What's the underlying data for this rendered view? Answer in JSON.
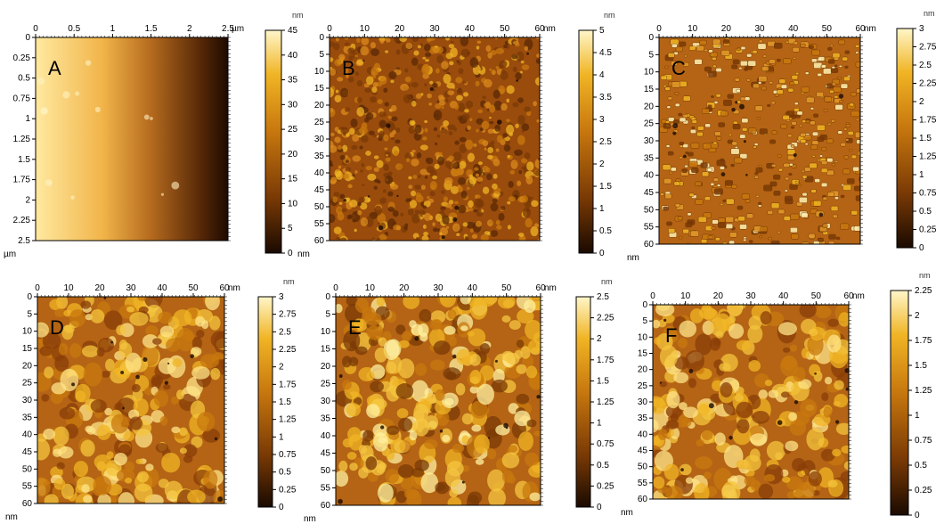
{
  "panels": [
    {
      "id": "A",
      "letter": "A",
      "x_ticks": [
        "0",
        "0.5",
        "1",
        "1.5",
        "2",
        "2.5"
      ],
      "x_unit": "µm",
      "y_ticks": [
        "0",
        "0.25",
        "0.5",
        "0.75",
        "1",
        "1.25",
        "1.5",
        "1.75",
        "2",
        "2.25",
        "2.5"
      ],
      "y_unit": "µm",
      "scale_unit": "nm",
      "scale_ticks": [
        "45",
        "40",
        "35",
        "30",
        "25",
        "20",
        "15",
        "10",
        "5",
        "0"
      ],
      "texture": "gradient"
    },
    {
      "id": "B",
      "letter": "B",
      "x_ticks": [
        "0",
        "10",
        "20",
        "30",
        "40",
        "50",
        "60"
      ],
      "x_unit": "nm",
      "y_ticks": [
        "0",
        "5",
        "10",
        "15",
        "20",
        "25",
        "30",
        "35",
        "40",
        "45",
        "50",
        "55",
        "60"
      ],
      "y_unit": "nm",
      "scale_unit": "nm",
      "scale_ticks": [
        "5",
        "4.5",
        "4",
        "3.5",
        "3",
        "2.5",
        "2",
        "1.5",
        "1",
        "0.5",
        "0"
      ],
      "texture": "fine"
    },
    {
      "id": "C",
      "letter": "C",
      "x_ticks": [
        "0",
        "10",
        "20",
        "30",
        "40",
        "50",
        "60"
      ],
      "x_unit": "nm",
      "y_ticks": [
        "0",
        "5",
        "10",
        "15",
        "20",
        "25",
        "30",
        "35",
        "40",
        "45",
        "50",
        "55",
        "60"
      ],
      "y_unit": "nm",
      "scale_unit": "nm",
      "scale_ticks": [
        "3",
        "2.75",
        "2.5",
        "2.25",
        "2",
        "1.75",
        "1.5",
        "1.25",
        "1",
        "0.75",
        "0.5",
        "0.25",
        "0"
      ],
      "texture": "grain"
    },
    {
      "id": "D",
      "letter": "D",
      "x_ticks": [
        "0",
        "10",
        "20",
        "30",
        "40",
        "50",
        "60"
      ],
      "x_unit": "nm",
      "y_ticks": [
        "0",
        "5",
        "10",
        "15",
        "20",
        "25",
        "30",
        "35",
        "40",
        "45",
        "50",
        "55",
        "60"
      ],
      "y_unit": "nm",
      "scale_unit": "nm",
      "scale_ticks": [
        "3",
        "2.75",
        "2.5",
        "2.25",
        "2",
        "1.75",
        "1.5",
        "1.25",
        "1",
        "0.75",
        "0.5",
        "0.25",
        "0"
      ],
      "texture": "smooth"
    },
    {
      "id": "E",
      "letter": "E",
      "x_ticks": [
        "0",
        "10",
        "20",
        "30",
        "40",
        "50",
        "60"
      ],
      "x_unit": "nm",
      "y_ticks": [
        "0",
        "5",
        "10",
        "15",
        "20",
        "25",
        "30",
        "35",
        "40",
        "45",
        "50",
        "55",
        "60"
      ],
      "y_unit": "nm",
      "scale_unit": "nm",
      "scale_ticks": [
        "2.5",
        "2.25",
        "2",
        "1.75",
        "1.5",
        "1.25",
        "1",
        "0.75",
        "0.5",
        "0.25",
        "0"
      ],
      "texture": "blobs"
    },
    {
      "id": "F",
      "letter": "F",
      "x_ticks": [
        "0",
        "10",
        "20",
        "30",
        "40",
        "50",
        "60"
      ],
      "x_unit": "nm",
      "y_ticks": [
        "0",
        "5",
        "10",
        "15",
        "20",
        "25",
        "30",
        "35",
        "40",
        "45",
        "50",
        "55",
        "60"
      ],
      "y_unit": "nm",
      "scale_unit": "nm",
      "scale_ticks": [
        "2.25",
        "2",
        "1.75",
        "1.5",
        "1.25",
        "1",
        "0.75",
        "0.5",
        "0.25",
        "0"
      ],
      "texture": "smooth"
    }
  ],
  "colors": {
    "dark": "#1a0a00",
    "brown": "#7a3a05",
    "orange": "#c8780e",
    "gold": "#f0b424",
    "light": "#fff6c8"
  }
}
